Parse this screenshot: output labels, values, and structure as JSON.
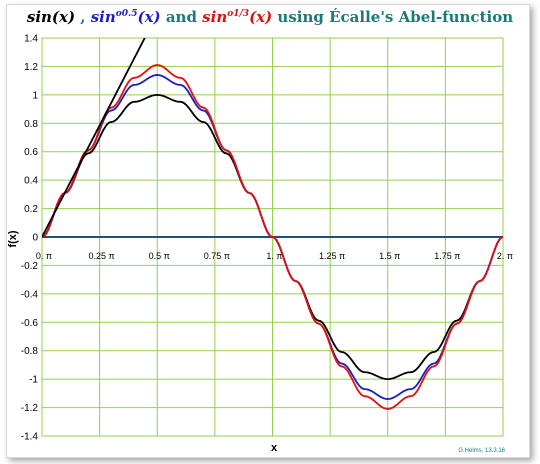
{
  "title": {
    "part1": "sin(x)",
    "sep1": " , ",
    "part2_base": "sin",
    "part2_sup": "o0.5",
    "part2_tail": "(x)",
    "sep2": " and ",
    "part3_base": "sin",
    "part3_sup": "o1/3",
    "part3_tail": "(x)",
    "sep3": "  using Écalle's Abel-function",
    "colors": {
      "part1": "#000000",
      "part2": "#1f1fbf",
      "and": "#1a7a7a",
      "part3": "#e01010",
      "rest": "#1a7a7a"
    }
  },
  "credit": "G.Helms, 13.3.16",
  "chart_data": {
    "type": "line",
    "xlabel": "x",
    "ylabel": "f(x)",
    "xlim": [
      0,
      2.0
    ],
    "ylim": [
      -1.4,
      1.4
    ],
    "x_unit": "π",
    "x_ticks": [
      {
        "v": 0.0,
        "label": "0."
      },
      {
        "v": 0.25,
        "label": "0.25"
      },
      {
        "v": 0.5,
        "label": "0.5"
      },
      {
        "v": 0.75,
        "label": "0.75"
      },
      {
        "v": 1.0,
        "label": "1."
      },
      {
        "v": 1.25,
        "label": "1.25"
      },
      {
        "v": 1.5,
        "label": "1.5"
      },
      {
        "v": 1.75,
        "label": "1.75"
      },
      {
        "v": 2.0,
        "label": "2."
      }
    ],
    "y_ticks": [
      {
        "v": 1.4,
        "label": "1.4"
      },
      {
        "v": 1.2,
        "label": "1.2"
      },
      {
        "v": 1.0,
        "label": "1"
      },
      {
        "v": 0.8,
        "label": "0.8"
      },
      {
        "v": 0.6,
        "label": "0.6"
      },
      {
        "v": 0.4,
        "label": "0.4"
      },
      {
        "v": 0.2,
        "label": "0.2"
      },
      {
        "v": 0.0,
        "label": "0"
      },
      {
        "v": -0.2,
        "label": "-0.2"
      },
      {
        "v": -0.4,
        "label": "-0.4"
      },
      {
        "v": -0.6,
        "label": "-0.6"
      },
      {
        "v": -0.8,
        "label": "-0.8"
      },
      {
        "v": -1.0,
        "label": "-1"
      },
      {
        "v": -1.2,
        "label": "-1.2"
      },
      {
        "v": -1.4,
        "label": "-1.4"
      }
    ],
    "grid": true,
    "colors": {
      "grid": "#92d050",
      "zero_axis": "#1f4f7f",
      "sin": "#000000",
      "half": "#1f1fbf",
      "third": "#e01010",
      "identity": "#000000"
    },
    "series": [
      {
        "x": [
          0,
          0.1,
          0.2,
          0.3,
          0.4,
          0.5,
          0.6,
          0.7,
          0.8,
          0.9,
          1.0,
          1.1,
          1.2,
          1.3,
          1.4,
          1.5,
          1.6,
          1.7,
          1.8,
          1.9,
          2.0
        ],
        "y": [
          0,
          0.309,
          0.588,
          0.809,
          0.951,
          1.0,
          0.951,
          0.809,
          0.588,
          0.309,
          0,
          -0.309,
          -0.588,
          -0.809,
          -0.951,
          -1.0,
          -0.951,
          -0.809,
          -0.588,
          -0.309,
          0
        ],
        "color_key": "sin"
      },
      {
        "x": [
          0,
          0.1,
          0.2,
          0.3,
          0.4,
          0.5,
          0.6,
          0.7,
          0.8,
          0.9,
          1.0,
          1.1,
          1.2,
          1.3,
          1.4,
          1.5,
          1.6,
          1.7,
          1.8,
          1.9,
          2.0
        ],
        "y": [
          0,
          0.31,
          0.61,
          0.89,
          1.07,
          1.14,
          1.07,
          0.89,
          0.61,
          0.31,
          0,
          -0.31,
          -0.61,
          -0.89,
          -1.07,
          -1.14,
          -1.07,
          -0.89,
          -0.61,
          -0.31,
          0
        ],
        "color_key": "half"
      },
      {
        "x": [
          0,
          0.1,
          0.2,
          0.3,
          0.4,
          0.5,
          0.6,
          0.7,
          0.8,
          0.9,
          1.0,
          1.1,
          1.2,
          1.3,
          1.4,
          1.5,
          1.6,
          1.7,
          1.8,
          1.9,
          2.0
        ],
        "y": [
          0,
          0.31,
          0.61,
          0.91,
          1.12,
          1.21,
          1.12,
          0.91,
          0.61,
          0.31,
          0,
          -0.31,
          -0.61,
          -0.91,
          -1.12,
          -1.21,
          -1.12,
          -0.91,
          -0.61,
          -0.31,
          0
        ],
        "color_key": "third"
      },
      {
        "x": [
          0,
          0.6
        ],
        "y": [
          0,
          1.885
        ],
        "color_key": "identity"
      }
    ]
  }
}
